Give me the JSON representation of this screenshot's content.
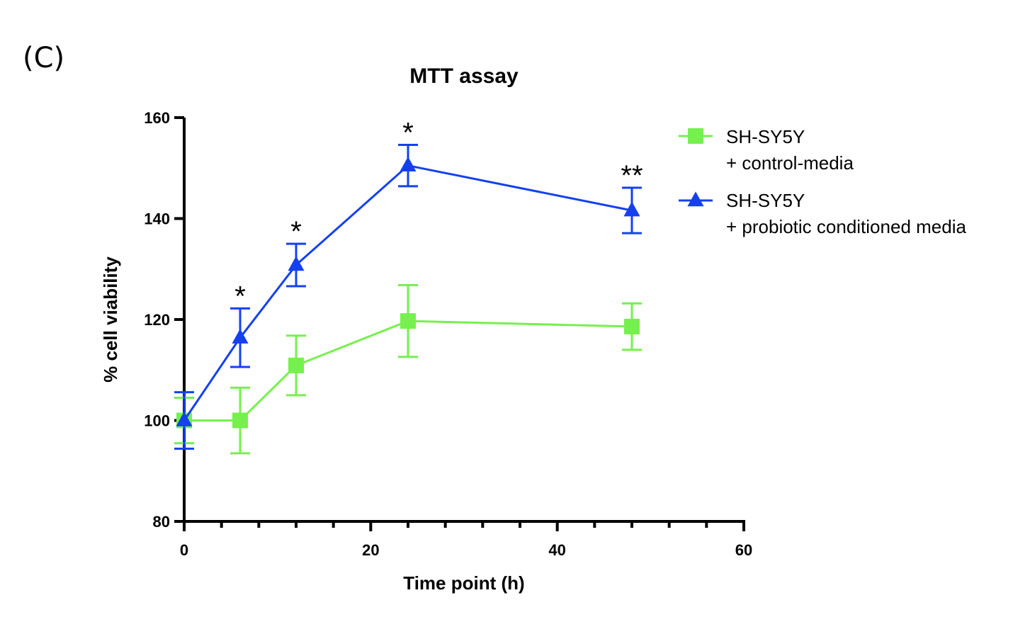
{
  "panel_label": "(C)",
  "chart_data": {
    "type": "line",
    "title": "MTT assay",
    "xlabel": "Time point (h)",
    "ylabel": "% cell viability",
    "xlim": [
      0,
      60
    ],
    "ylim": [
      80,
      160
    ],
    "xticks": [
      0,
      20,
      40,
      60
    ],
    "xtick_labels": [
      "0",
      "20",
      "40",
      "60"
    ],
    "x_minor_tick_step": 4,
    "yticks": [
      80,
      100,
      120,
      140,
      160
    ],
    "ytick_labels": [
      "80",
      "100",
      "120",
      "140",
      "160"
    ],
    "grid": false,
    "legend_position": "right",
    "x": [
      0,
      6,
      12,
      24,
      48
    ],
    "series": [
      {
        "name_line1": "SH-SY5Y",
        "name_line2": "+ control-media",
        "marker": "square",
        "color": "#76F04E",
        "values": [
          100,
          100,
          110.9,
          119.7,
          118.6
        ],
        "errors": [
          4.5,
          6.5,
          5.9,
          7.1,
          4.6
        ]
      },
      {
        "name_line1": "SH-SY5Y",
        "name_line2": "+ probiotic conditioned media",
        "marker": "triangle",
        "color": "#1440F0",
        "values": [
          100,
          116.4,
          130.8,
          150.5,
          141.6
        ],
        "errors": [
          5.6,
          5.8,
          4.2,
          4.1,
          4.5
        ]
      }
    ],
    "annotations": [
      {
        "x": 6,
        "text": "*"
      },
      {
        "x": 12,
        "text": "*"
      },
      {
        "x": 24,
        "text": "*"
      },
      {
        "x": 48,
        "text": "**"
      }
    ]
  }
}
